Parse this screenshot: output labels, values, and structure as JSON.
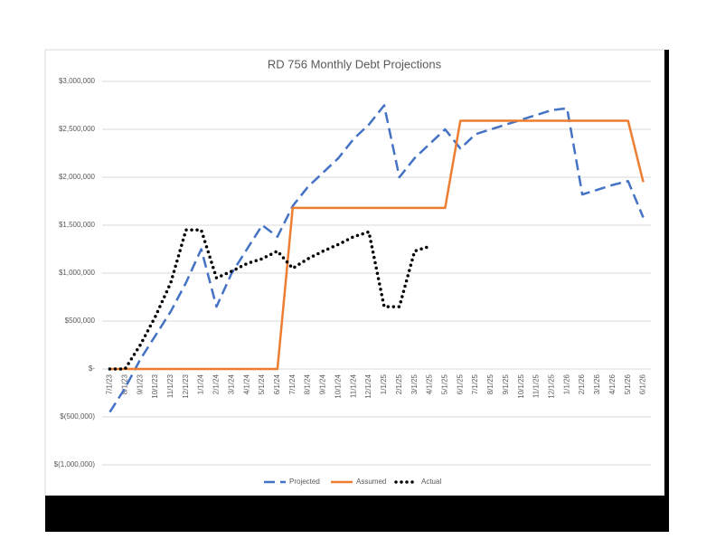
{
  "chart_data": {
    "type": "line",
    "title": "RD 756 Monthly Debt Projections",
    "categories": [
      "7/1/23",
      "8/1/23",
      "9/1/23",
      "10/1/23",
      "11/1/23",
      "12/1/23",
      "1/1/24",
      "2/1/24",
      "3/1/24",
      "4/1/24",
      "5/1/24",
      "6/1/24",
      "7/1/24",
      "8/1/24",
      "9/1/24",
      "10/1/24",
      "11/1/24",
      "12/1/24",
      "1/1/25",
      "2/1/25",
      "3/1/25",
      "4/1/25",
      "5/1/25",
      "6/1/25",
      "7/1/25",
      "8/1/25",
      "9/1/25",
      "10/1/25",
      "11/1/25",
      "12/1/25",
      "1/1/26",
      "2/1/26",
      "3/1/26",
      "4/1/26",
      "5/1/26",
      "6/1/26"
    ],
    "series": [
      {
        "name": "Projected",
        "color": "#4472c4",
        "dash": "dashed",
        "values": [
          -450000,
          -200000,
          100000,
          350000,
          600000,
          900000,
          1250000,
          650000,
          1000000,
          1250000,
          1500000,
          1380000,
          1700000,
          1900000,
          2050000,
          2200000,
          2400000,
          2550000,
          2750000,
          2000000,
          2200000,
          2350000,
          2500000,
          2300000,
          2450000,
          2500000,
          2550000,
          2600000,
          2650000,
          2700000,
          2720000,
          1820000,
          1870000,
          1920000,
          1960000,
          1580000
        ]
      },
      {
        "name": "Assumed",
        "color": "#ed7d31",
        "dash": "solid",
        "values": [
          0,
          0,
          0,
          0,
          0,
          0,
          0,
          0,
          0,
          0,
          0,
          0,
          1680000,
          1680000,
          1680000,
          1680000,
          1680000,
          1680000,
          1680000,
          1680000,
          1680000,
          1680000,
          1680000,
          2590000,
          2590000,
          2590000,
          2590000,
          2590000,
          2590000,
          2590000,
          2590000,
          2590000,
          2590000,
          2590000,
          2590000,
          1950000
        ]
      },
      {
        "name": "Actual",
        "color": "#000000",
        "dash": "dotted",
        "values": [
          0,
          0,
          250000,
          550000,
          900000,
          1450000,
          1450000,
          950000,
          1020000,
          1100000,
          1150000,
          1230000,
          1050000,
          1150000,
          1230000,
          1300000,
          1380000,
          1430000,
          650000,
          650000,
          1230000,
          1280000,
          null,
          null,
          null,
          null,
          null,
          null,
          null,
          null,
          null,
          null,
          null,
          null,
          null,
          null
        ]
      }
    ],
    "ylim": [
      -1000000,
      3000000
    ],
    "yticks": [
      {
        "value": -1000000,
        "label": "$(1,000,000)"
      },
      {
        "value": -500000,
        "label": "$(500,000)"
      },
      {
        "value": 0,
        "label": "$-"
      },
      {
        "value": 500000,
        "label": "$500,000"
      },
      {
        "value": 1000000,
        "label": "$1,000,000"
      },
      {
        "value": 1500000,
        "label": "$1,500,000"
      },
      {
        "value": 2000000,
        "label": "$2,000,000"
      },
      {
        "value": 2500000,
        "label": "$2,500,000"
      },
      {
        "value": 3000000,
        "label": "$3,000,000"
      }
    ],
    "grid": true,
    "legend": "bottom"
  }
}
